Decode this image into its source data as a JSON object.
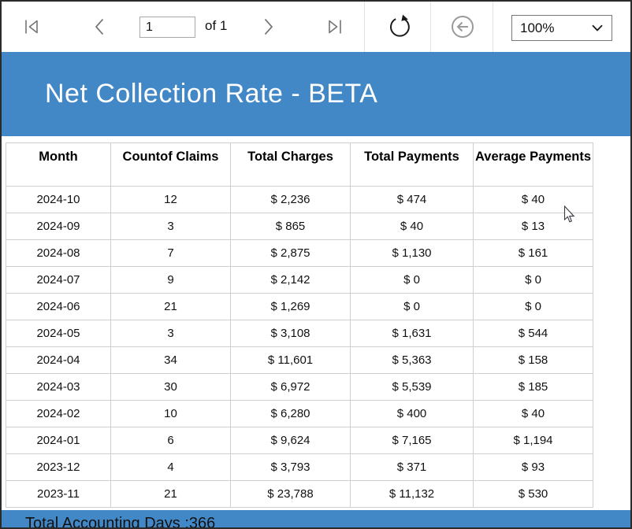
{
  "toolbar": {
    "page_number": "1",
    "of_label": "of 1",
    "zoom_value": "100%"
  },
  "report": {
    "title": "Net Collection Rate - BETA",
    "footer_text": "Total Accounting Days :366"
  },
  "table": {
    "headers": [
      "Month",
      "Countof Claims",
      "Total Charges",
      "Total Payments",
      "Average Payments"
    ],
    "rows": [
      [
        "2024-10",
        "12",
        "$ 2,236",
        "$ 474",
        "$ 40"
      ],
      [
        "2024-09",
        "3",
        "$ 865",
        "$ 40",
        "$ 13"
      ],
      [
        "2024-08",
        "7",
        "$ 2,875",
        "$ 1,130",
        "$ 161"
      ],
      [
        "2024-07",
        "9",
        "$ 2,142",
        "$ 0",
        "$ 0"
      ],
      [
        "2024-06",
        "21",
        "$ 1,269",
        "$ 0",
        "$ 0"
      ],
      [
        "2024-05",
        "3",
        "$ 3,108",
        "$ 1,631",
        "$ 544"
      ],
      [
        "2024-04",
        "34",
        "$ 11,601",
        "$ 5,363",
        "$ 158"
      ],
      [
        "2024-03",
        "30",
        "$ 6,972",
        "$ 5,539",
        "$ 185"
      ],
      [
        "2024-02",
        "10",
        "$ 6,280",
        "$ 400",
        "$ 40"
      ],
      [
        "2024-01",
        "6",
        "$ 9,624",
        "$ 7,165",
        "$ 1,194"
      ],
      [
        "2023-12",
        "4",
        "$ 3,793",
        "$ 371",
        "$ 93"
      ],
      [
        "2023-11",
        "21",
        "$ 23,788",
        "$ 11,132",
        "$ 530"
      ]
    ]
  },
  "icons": {
    "first_page": "first-page-icon",
    "previous_page": "chevron-left-icon",
    "next_page": "chevron-right-icon",
    "last_page": "last-page-icon",
    "refresh": "refresh-icon",
    "back": "back-circle-icon",
    "zoom_dropdown": "chevron-down-icon",
    "pointer": "mouse-cursor"
  },
  "colors": {
    "header_bar": "#4287C6",
    "footer_bar": "#4287C6",
    "table_border": "#CFCFCF",
    "toolbar_divider": "#E3E3E3",
    "icon_gray": "#757575",
    "icon_dark": "#1A1A1A",
    "icon_disabled": "#9A9A9A",
    "text": "#111111"
  }
}
